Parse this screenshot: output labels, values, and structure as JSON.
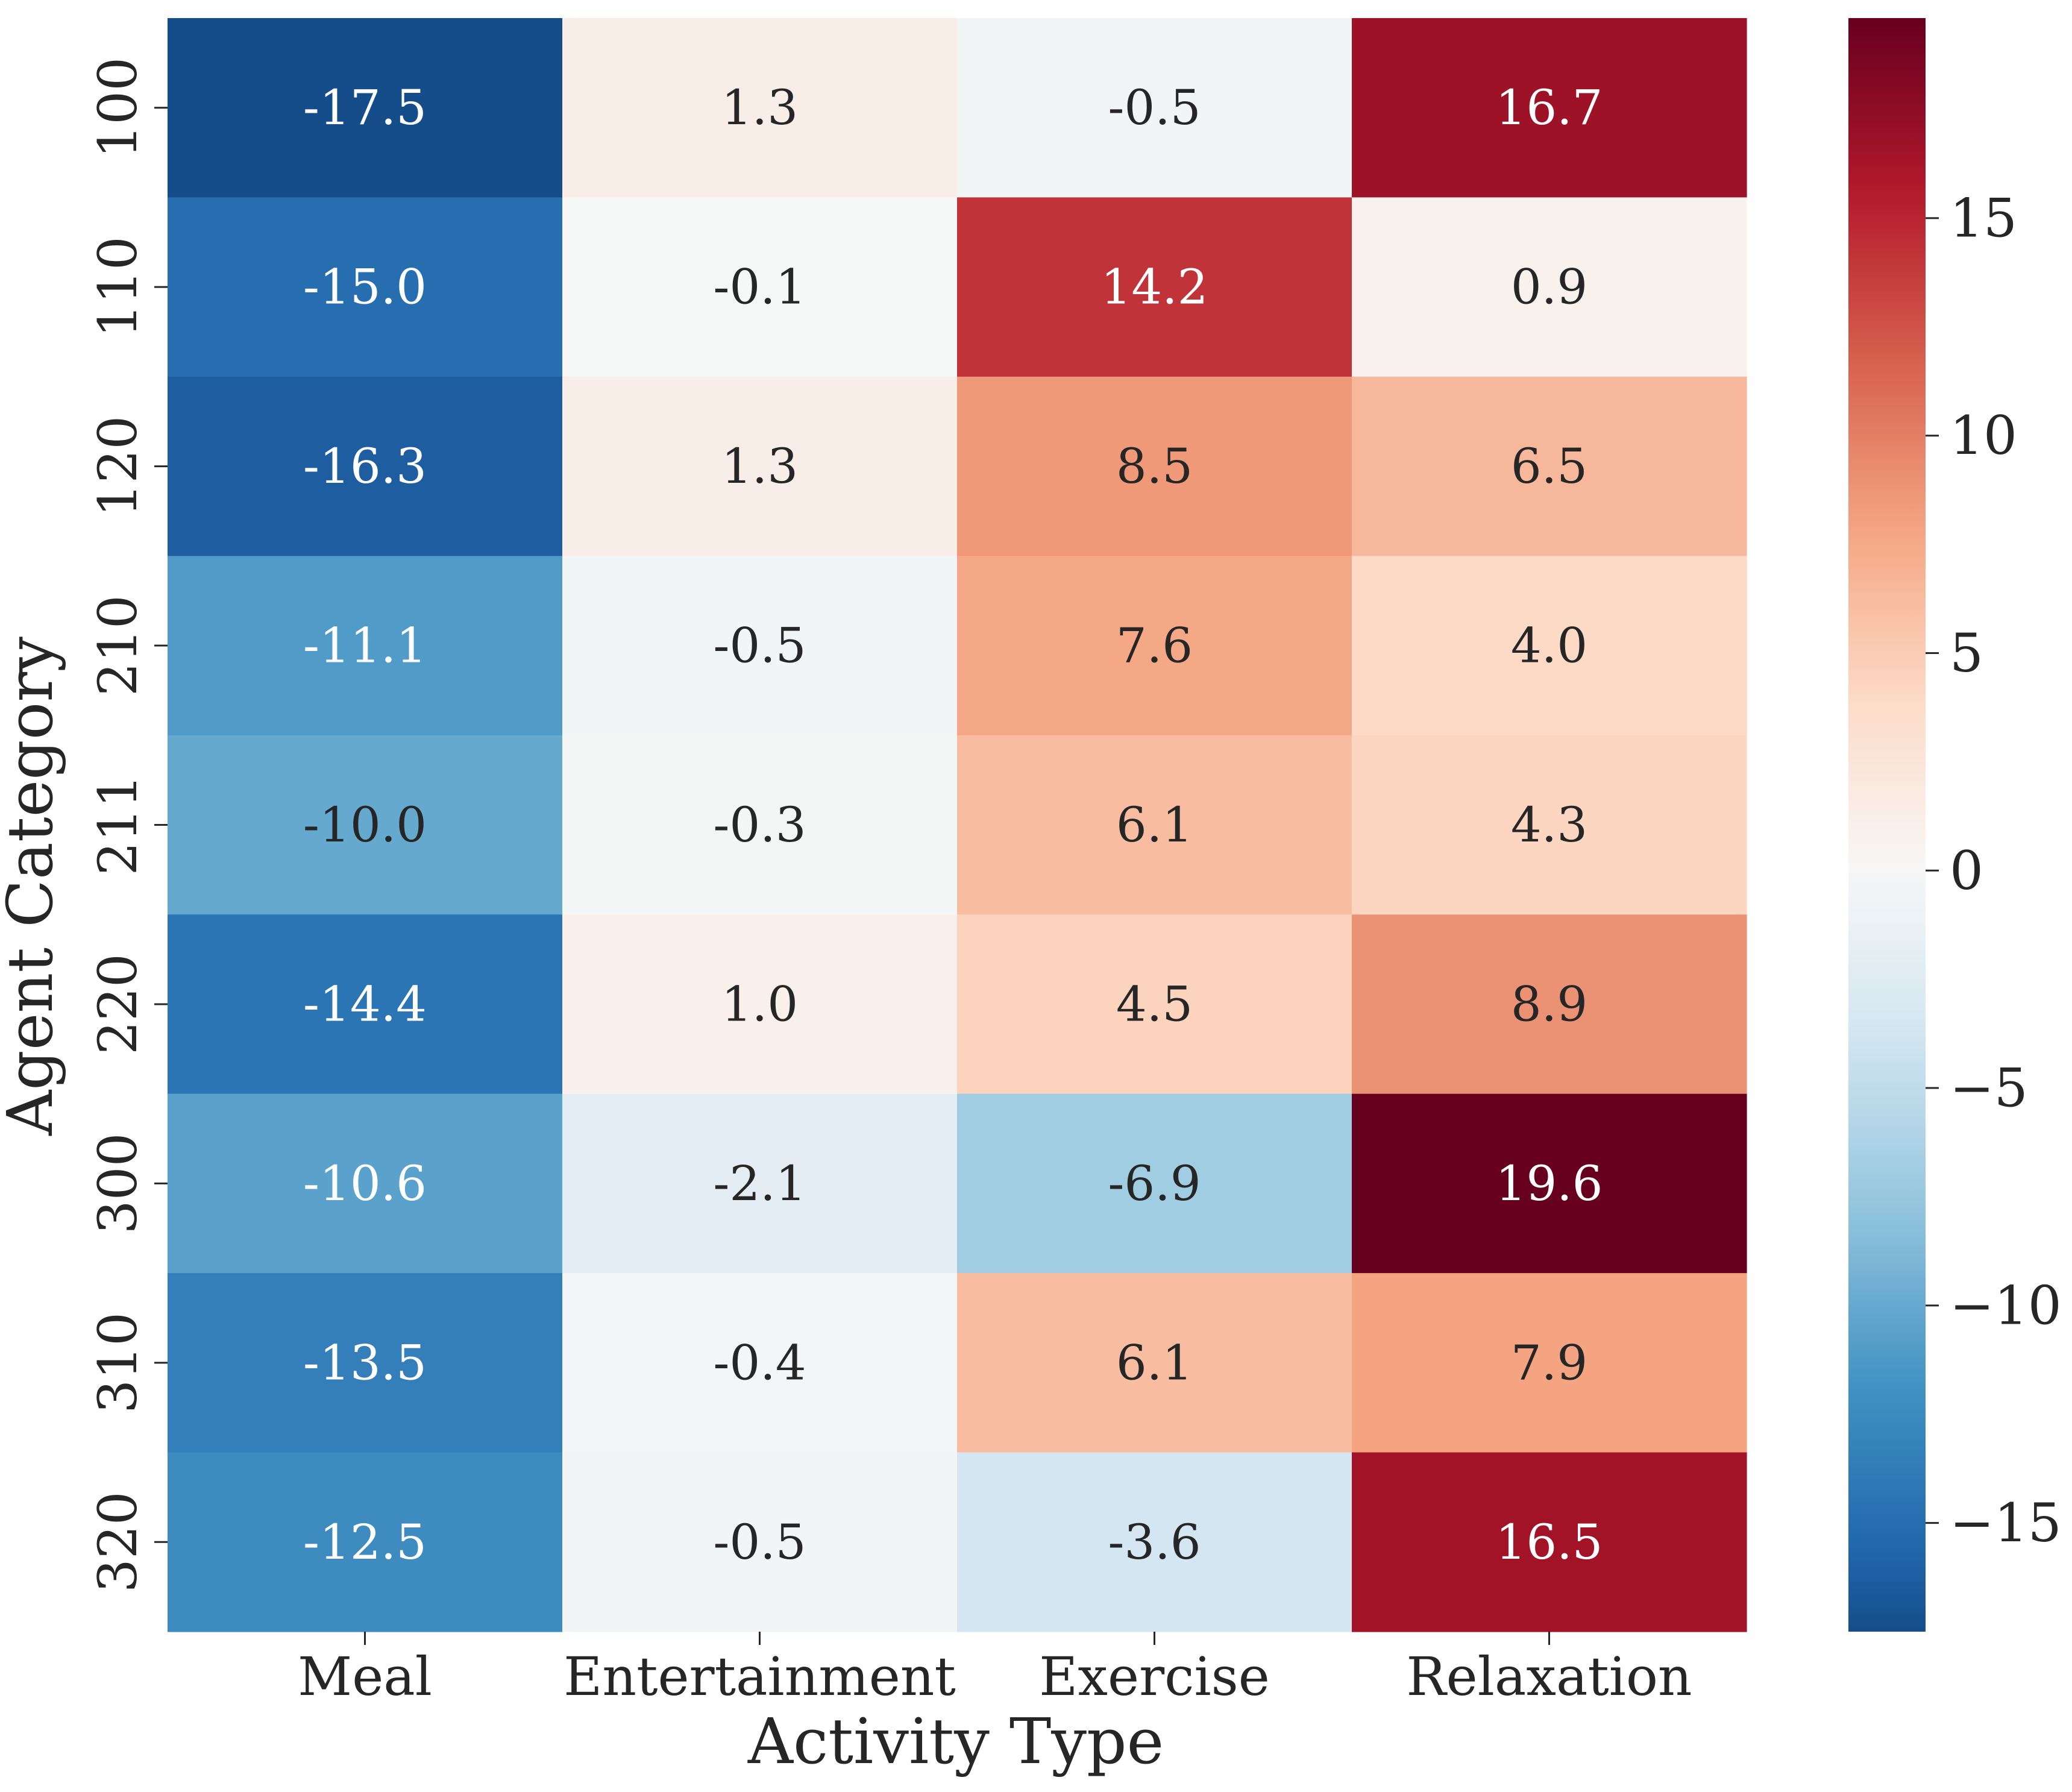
{
  "chart_data": {
    "type": "heatmap",
    "title": "",
    "xlabel": "Activity Type",
    "ylabel": "Agent Category",
    "x_categories": [
      "Meal",
      "Entertainment",
      "Exercise",
      "Relaxation"
    ],
    "y_categories": [
      "100",
      "110",
      "120",
      "210",
      "211",
      "220",
      "300",
      "310",
      "320"
    ],
    "values": [
      [
        -17.5,
        1.3,
        -0.5,
        16.7
      ],
      [
        -15.0,
        -0.1,
        14.2,
        0.9
      ],
      [
        -16.3,
        1.3,
        8.5,
        6.5
      ],
      [
        -11.1,
        -0.5,
        7.6,
        4.0
      ],
      [
        -10.0,
        -0.3,
        6.1,
        4.3
      ],
      [
        -14.4,
        1.0,
        4.5,
        8.9
      ],
      [
        -10.6,
        -2.1,
        -6.9,
        19.6
      ],
      [
        -13.5,
        -0.4,
        6.1,
        7.9
      ],
      [
        -12.5,
        -0.5,
        -3.6,
        16.5
      ]
    ],
    "cell_labels": [
      [
        "-17.5",
        "1.3",
        "-0.5",
        "16.7"
      ],
      [
        "-15.0",
        "-0.1",
        "14.2",
        "0.9"
      ],
      [
        "-16.3",
        "1.3",
        "8.5",
        "6.5"
      ],
      [
        "-11.1",
        "-0.5",
        "7.6",
        "4.0"
      ],
      [
        "-10.0",
        "-0.3",
        "6.1",
        "4.3"
      ],
      [
        "-14.4",
        "1.0",
        "4.5",
        "8.9"
      ],
      [
        "-10.6",
        "-2.1",
        "-6.9",
        "19.6"
      ],
      [
        "-13.5",
        "-0.4",
        "6.1",
        "7.9"
      ],
      [
        "-12.5",
        "-0.5",
        "-3.6",
        "16.5"
      ]
    ],
    "colormap": "RdBu_r",
    "colorbar": {
      "vmin": -17.5,
      "vmax": 19.6,
      "center": 0,
      "ticks": [
        -15,
        -10,
        -5,
        0,
        5,
        10,
        15
      ],
      "tick_labels": [
        "−15",
        "−10",
        "−5",
        "0",
        "5",
        "10",
        "15"
      ]
    }
  },
  "colors": {
    "text_dark": "#262626",
    "text_light": "#ffffff",
    "axis": "#262626",
    "background": "#ffffff"
  }
}
